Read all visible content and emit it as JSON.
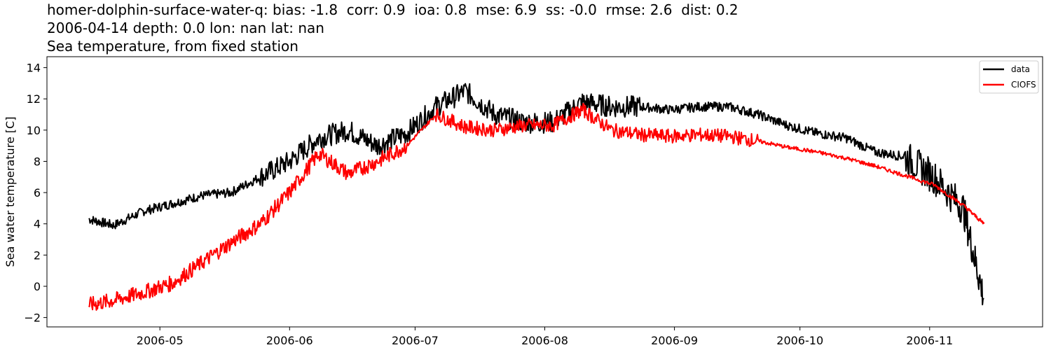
{
  "header": {
    "line1": "homer-dolphin-surface-water-q: bias: -1.8  corr: 0.9  ioa: 0.8  mse: 6.9  ss: -0.0  rmse: 2.6  dist: 0.2",
    "line2": "2006-04-14 depth: 0.0 lon: nan lat: nan",
    "line3": "Sea temperature, from fixed station"
  },
  "colors": {
    "data": "#000000",
    "CIOFS": "#ff0000"
  },
  "chart_data": {
    "type": "line",
    "title": "homer-dolphin-surface-water-q: bias: -1.8  corr: 0.9  ioa: 0.8  mse: 6.9  ss: -0.0  rmse: 2.6  dist: 0.2 / 2006-04-14 depth: 0.0 lon: nan lat: nan / Sea temperature, from fixed station",
    "xlabel": "",
    "ylabel": "Sea water temperature [C]",
    "ylim": [
      -2.6,
      14.7
    ],
    "yticks": [
      -2,
      0,
      2,
      4,
      6,
      8,
      10,
      12,
      14
    ],
    "xticks": [
      "2006-05",
      "2006-06",
      "2006-07",
      "2006-08",
      "2006-09",
      "2006-10",
      "2006-11"
    ],
    "xlim": [
      "2006-04-04",
      "2006-11-28"
    ],
    "grid": false,
    "legend_position": "upper right",
    "legend": [
      "data",
      "CIOFS"
    ],
    "x": [
      "2006-04-14",
      "2006-04-20",
      "2006-04-27",
      "2006-05-04",
      "2006-05-11",
      "2006-05-18",
      "2006-05-25",
      "2006-06-01",
      "2006-06-08",
      "2006-06-15",
      "2006-06-22",
      "2006-06-29",
      "2006-07-06",
      "2006-07-13",
      "2006-07-20",
      "2006-07-27",
      "2006-08-03",
      "2006-08-10",
      "2006-08-17",
      "2006-08-24",
      "2006-08-31",
      "2006-09-07",
      "2006-09-14",
      "2006-09-21",
      "2006-09-28",
      "2006-10-05",
      "2006-10-12",
      "2006-10-19",
      "2006-10-26",
      "2006-11-02",
      "2006-11-09",
      "2006-11-14"
    ],
    "series": [
      {
        "name": "data",
        "values": [
          4.3,
          3.9,
          4.8,
          5.3,
          5.8,
          6.0,
          7.0,
          8.0,
          9.5,
          10.0,
          9.0,
          9.8,
          11.5,
          12.5,
          11.0,
          10.5,
          10.5,
          11.8,
          11.5,
          11.5,
          11.3,
          11.5,
          11.5,
          11.0,
          10.3,
          9.8,
          9.5,
          8.6,
          8.3,
          7.0,
          5.0,
          -0.8
        ]
      },
      {
        "name": "CIOFS",
        "values": [
          -1.2,
          -0.9,
          -0.4,
          0.2,
          1.5,
          2.8,
          4.0,
          6.0,
          8.5,
          7.2,
          8.0,
          9.0,
          11.0,
          10.2,
          10.0,
          10.3,
          10.3,
          11.3,
          10.0,
          9.7,
          9.6,
          9.7,
          9.6,
          9.3,
          8.9,
          8.6,
          8.2,
          7.7,
          7.1,
          6.5,
          5.2,
          4.0
        ]
      }
    ]
  }
}
